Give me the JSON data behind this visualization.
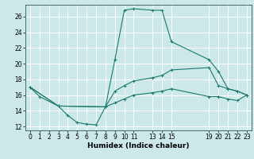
{
  "xlabel": "Humidex (Indice chaleur)",
  "bg_color": "#cce8e8",
  "grid_color": "#ffffff",
  "line_color": "#1a7a6e",
  "xlim": [
    -0.5,
    23.5
  ],
  "ylim": [
    11.5,
    27.5
  ],
  "xticks": [
    0,
    1,
    2,
    3,
    4,
    5,
    6,
    7,
    8,
    9,
    10,
    11,
    13,
    14,
    15,
    19,
    20,
    21,
    22,
    23
  ],
  "yticks": [
    12,
    14,
    16,
    18,
    20,
    22,
    24,
    26
  ],
  "series1": [
    [
      0,
      17.0
    ],
    [
      1,
      15.8
    ],
    [
      3,
      14.6
    ],
    [
      4,
      13.4
    ],
    [
      5,
      12.5
    ],
    [
      6,
      12.3
    ],
    [
      7,
      12.2
    ],
    [
      8,
      14.5
    ],
    [
      9,
      20.5
    ],
    [
      10,
      26.8
    ],
    [
      11,
      27.0
    ],
    [
      13,
      26.8
    ],
    [
      14,
      26.8
    ],
    [
      15,
      22.8
    ],
    [
      19,
      20.5
    ],
    [
      20,
      19.0
    ],
    [
      21,
      16.8
    ],
    [
      22,
      16.5
    ],
    [
      23,
      16.0
    ]
  ],
  "series2": [
    [
      0,
      17.0
    ],
    [
      3,
      14.6
    ],
    [
      8,
      14.5
    ],
    [
      9,
      16.5
    ],
    [
      10,
      17.2
    ],
    [
      11,
      17.8
    ],
    [
      13,
      18.2
    ],
    [
      14,
      18.5
    ],
    [
      15,
      19.2
    ],
    [
      19,
      19.5
    ],
    [
      20,
      17.2
    ],
    [
      21,
      16.8
    ],
    [
      22,
      16.5
    ],
    [
      23,
      16.0
    ]
  ],
  "series3": [
    [
      0,
      17.0
    ],
    [
      3,
      14.6
    ],
    [
      8,
      14.5
    ],
    [
      9,
      15.0
    ],
    [
      10,
      15.5
    ],
    [
      11,
      16.0
    ],
    [
      13,
      16.3
    ],
    [
      14,
      16.5
    ],
    [
      15,
      16.8
    ],
    [
      19,
      15.8
    ],
    [
      20,
      15.8
    ],
    [
      21,
      15.5
    ],
    [
      22,
      15.3
    ],
    [
      23,
      16.0
    ]
  ]
}
